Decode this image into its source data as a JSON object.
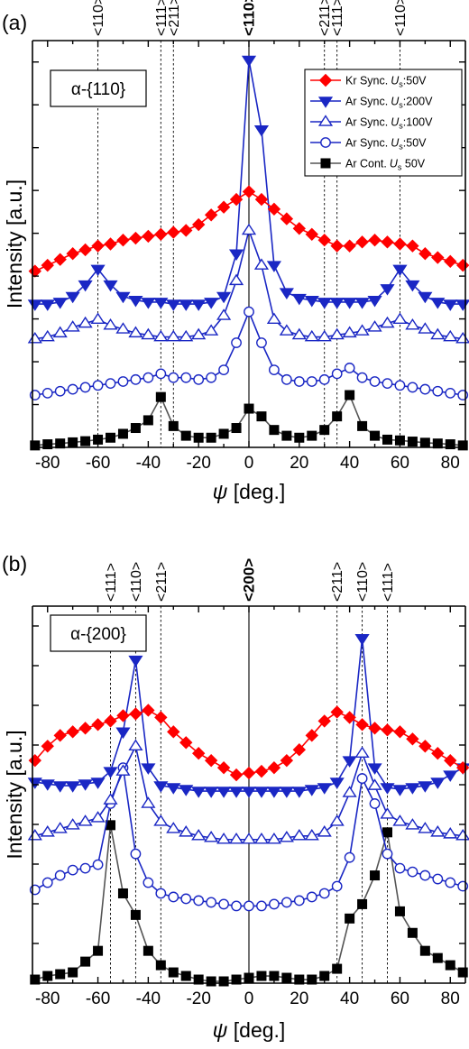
{
  "chart_data": [
    {
      "type": "line",
      "panel_label": "(a)",
      "annotation": "α-{110}",
      "xlabel_sym": "ψ",
      "xlabel_rest": " [deg.]",
      "ylabel": "Intensity [a.u.]",
      "xlim": [
        -86,
        86
      ],
      "ylim": [
        0,
        1.05
      ],
      "x_ticks": [
        -80,
        -60,
        -40,
        -20,
        0,
        20,
        40,
        60,
        80
      ],
      "y_tick_labels": "none",
      "legend_position": "top-right",
      "direction_guides": [
        {
          "x": -60,
          "label": "<110>",
          "style": "dotted",
          "bold": false
        },
        {
          "x": -35,
          "label": "<111>",
          "style": "dotted",
          "bold": false
        },
        {
          "x": -30,
          "label": "<211>",
          "style": "dotted",
          "bold": false
        },
        {
          "x": 0,
          "label": "<110>",
          "style": "solid",
          "bold": true
        },
        {
          "x": 30,
          "label": "<211>",
          "style": "dotted",
          "bold": false
        },
        {
          "x": 35,
          "label": "<111>",
          "style": "dotted",
          "bold": false
        },
        {
          "x": 60,
          "label": "<110>",
          "style": "dotted",
          "bold": false
        }
      ],
      "series": [
        {
          "name": "Kr Sync. U_s:50V",
          "label_pre": "Kr Sync.",
          "label_u": "U",
          "label_sub": "s",
          "label_post": ":50V",
          "color": "#ff0000",
          "marker": "diamond",
          "filled": true,
          "line_color": "#ff0000",
          "x": [
            -85,
            -80,
            -75,
            -70,
            -65,
            -60,
            -55,
            -50,
            -45,
            -40,
            -35,
            -30,
            -25,
            -20,
            -15,
            -10,
            -5,
            0,
            5,
            10,
            15,
            20,
            25,
            30,
            35,
            40,
            45,
            50,
            55,
            60,
            65,
            70,
            75,
            80,
            85
          ],
          "y": [
            0.455,
            0.47,
            0.485,
            0.5,
            0.51,
            0.52,
            0.525,
            0.535,
            0.54,
            0.545,
            0.55,
            0.555,
            0.56,
            0.575,
            0.6,
            0.62,
            0.64,
            0.66,
            0.64,
            0.615,
            0.59,
            0.565,
            0.55,
            0.535,
            0.52,
            0.52,
            0.53,
            0.535,
            0.53,
            0.525,
            0.52,
            0.5,
            0.49,
            0.48,
            0.47
          ]
        },
        {
          "name": "Ar Sync. U_s:200V",
          "label_pre": "Ar Sync.",
          "label_u": "U",
          "label_sub": "s",
          "label_post": ":200V",
          "color": "#1a27c4",
          "marker": "triangle-down",
          "filled": true,
          "line_color": "#1a27c4",
          "x": [
            -85,
            -80,
            -75,
            -70,
            -65,
            -60,
            -55,
            -50,
            -45,
            -40,
            -35,
            -30,
            -25,
            -20,
            -15,
            -10,
            -5,
            0,
            5,
            10,
            15,
            20,
            25,
            30,
            35,
            40,
            45,
            50,
            55,
            60,
            65,
            70,
            75,
            80,
            85
          ],
          "y": [
            0.37,
            0.37,
            0.375,
            0.39,
            0.42,
            0.46,
            0.42,
            0.39,
            0.38,
            0.375,
            0.375,
            0.37,
            0.37,
            0.37,
            0.375,
            0.39,
            0.5,
            1.0,
            0.82,
            0.47,
            0.4,
            0.385,
            0.38,
            0.375,
            0.375,
            0.375,
            0.375,
            0.38,
            0.41,
            0.46,
            0.42,
            0.39,
            0.375,
            0.37,
            0.37
          ]
        },
        {
          "name": "Ar Sync. U_s:100V",
          "label_pre": "Ar Sync.",
          "label_u": "U",
          "label_sub": "s",
          "label_post": ":100V",
          "color": "#1a27c4",
          "marker": "triangle-up",
          "filled": false,
          "line_color": "#1a27c4",
          "x": [
            -85,
            -80,
            -75,
            -70,
            -65,
            -60,
            -55,
            -50,
            -45,
            -40,
            -35,
            -30,
            -25,
            -20,
            -15,
            -10,
            -5,
            0,
            5,
            10,
            15,
            20,
            25,
            30,
            35,
            40,
            45,
            50,
            55,
            60,
            65,
            70,
            75,
            80,
            85
          ],
          "y": [
            0.28,
            0.285,
            0.295,
            0.31,
            0.32,
            0.33,
            0.315,
            0.305,
            0.295,
            0.29,
            0.285,
            0.285,
            0.285,
            0.29,
            0.3,
            0.34,
            0.43,
            0.56,
            0.47,
            0.33,
            0.3,
            0.29,
            0.285,
            0.285,
            0.29,
            0.295,
            0.3,
            0.31,
            0.32,
            0.33,
            0.315,
            0.305,
            0.29,
            0.285,
            0.28
          ]
        },
        {
          "name": "Ar Sync. U_s:50V",
          "label_pre": "Ar Sync.",
          "label_u": "U",
          "label_sub": "s",
          "label_post": ":50V",
          "color": "#1a27c4",
          "marker": "circle",
          "filled": false,
          "line_color": "#1a27c4",
          "x": [
            -85,
            -80,
            -75,
            -70,
            -65,
            -60,
            -55,
            -50,
            -45,
            -40,
            -35,
            -30,
            -25,
            -20,
            -15,
            -10,
            -5,
            0,
            5,
            10,
            15,
            20,
            25,
            30,
            35,
            40,
            45,
            50,
            55,
            60,
            65,
            70,
            75,
            80,
            85
          ],
          "y": [
            0.135,
            0.14,
            0.145,
            0.15,
            0.155,
            0.16,
            0.165,
            0.17,
            0.175,
            0.18,
            0.19,
            0.18,
            0.18,
            0.175,
            0.18,
            0.2,
            0.27,
            0.35,
            0.27,
            0.2,
            0.175,
            0.17,
            0.17,
            0.175,
            0.19,
            0.205,
            0.18,
            0.17,
            0.165,
            0.16,
            0.155,
            0.15,
            0.145,
            0.14,
            0.135
          ]
        },
        {
          "name": "Ar Cont. U_s 50V",
          "label_pre": "Ar Cont.",
          "label_u": "U",
          "label_sub": "s",
          "label_post": " 50V",
          "color": "#000000",
          "marker": "square",
          "filled": true,
          "line_color": "#555555",
          "x": [
            -85,
            -80,
            -75,
            -70,
            -65,
            -60,
            -55,
            -50,
            -45,
            -40,
            -35,
            -30,
            -25,
            -20,
            -15,
            -10,
            -5,
            0,
            5,
            10,
            15,
            20,
            25,
            30,
            35,
            40,
            45,
            50,
            55,
            60,
            65,
            70,
            75,
            80,
            85
          ],
          "y": [
            0.005,
            0.008,
            0.01,
            0.013,
            0.016,
            0.02,
            0.025,
            0.035,
            0.05,
            0.07,
            0.13,
            0.055,
            0.03,
            0.025,
            0.025,
            0.035,
            0.05,
            0.1,
            0.08,
            0.045,
            0.03,
            0.025,
            0.03,
            0.045,
            0.08,
            0.135,
            0.055,
            0.03,
            0.02,
            0.018,
            0.015,
            0.012,
            0.01,
            0.008,
            0.005
          ]
        }
      ]
    },
    {
      "type": "line",
      "panel_label": "(b)",
      "annotation": "α-{200}",
      "xlabel_sym": "ψ",
      "xlabel_rest": " [deg.]",
      "ylabel": "Intensity [a.u.]",
      "xlim": [
        -86,
        86
      ],
      "ylim": [
        0,
        1.05
      ],
      "x_ticks": [
        -80,
        -60,
        -40,
        -20,
        0,
        20,
        40,
        60,
        80
      ],
      "y_tick_labels": "none",
      "direction_guides": [
        {
          "x": -55,
          "label": "<111>",
          "style": "dotted",
          "bold": false
        },
        {
          "x": -45,
          "label": "<110>",
          "style": "dotted",
          "bold": false
        },
        {
          "x": -35,
          "label": "<211>",
          "style": "dotted",
          "bold": false
        },
        {
          "x": 0,
          "label": "<200>",
          "style": "solid",
          "bold": true
        },
        {
          "x": 35,
          "label": "<211>",
          "style": "dotted",
          "bold": false
        },
        {
          "x": 45,
          "label": "<110>",
          "style": "dotted",
          "bold": false
        },
        {
          "x": 55,
          "label": "<111>",
          "style": "dotted",
          "bold": false
        }
      ],
      "series": [
        {
          "name": "Kr Sync. U_s:50V",
          "color": "#ff0000",
          "marker": "diamond",
          "filled": true,
          "line_color": "#ff0000",
          "x": [
            -85,
            -80,
            -75,
            -70,
            -65,
            -60,
            -55,
            -50,
            -45,
            -40,
            -35,
            -30,
            -25,
            -20,
            -15,
            -10,
            -5,
            0,
            5,
            10,
            15,
            20,
            25,
            30,
            35,
            40,
            45,
            50,
            55,
            60,
            65,
            70,
            75,
            80,
            85
          ],
          "y": [
            0.62,
            0.66,
            0.69,
            0.7,
            0.71,
            0.72,
            0.73,
            0.745,
            0.75,
            0.76,
            0.74,
            0.7,
            0.67,
            0.64,
            0.62,
            0.6,
            0.58,
            0.585,
            0.59,
            0.6,
            0.62,
            0.65,
            0.69,
            0.73,
            0.755,
            0.74,
            0.72,
            0.71,
            0.705,
            0.7,
            0.68,
            0.66,
            0.64,
            0.62,
            0.6
          ]
        },
        {
          "name": "Ar Sync. U_s:200V",
          "color": "#1a27c4",
          "marker": "triangle-down",
          "filled": true,
          "line_color": "#1a27c4",
          "x": [
            -85,
            -80,
            -75,
            -70,
            -65,
            -60,
            -55,
            -50,
            -45,
            -40,
            -35,
            -30,
            -25,
            -20,
            -15,
            -10,
            -5,
            0,
            5,
            10,
            15,
            20,
            25,
            30,
            35,
            40,
            45,
            50,
            55,
            60,
            65,
            70,
            75,
            80,
            85
          ],
          "y": [
            0.56,
            0.555,
            0.55,
            0.55,
            0.555,
            0.56,
            0.59,
            0.7,
            0.9,
            0.6,
            0.55,
            0.545,
            0.54,
            0.535,
            0.535,
            0.535,
            0.535,
            0.535,
            0.535,
            0.535,
            0.535,
            0.535,
            0.54,
            0.545,
            0.56,
            0.62,
            0.96,
            0.6,
            0.545,
            0.54,
            0.545,
            0.55,
            0.56,
            0.58,
            0.6
          ]
        },
        {
          "name": "Ar Sync. U_s:100V",
          "color": "#1a27c4",
          "marker": "triangle-up",
          "filled": false,
          "line_color": "#1a27c4",
          "x": [
            -85,
            -80,
            -75,
            -70,
            -65,
            -60,
            -55,
            -50,
            -45,
            -40,
            -35,
            -30,
            -25,
            -20,
            -15,
            -10,
            -5,
            0,
            5,
            10,
            15,
            20,
            25,
            30,
            35,
            40,
            45,
            50,
            55,
            60,
            65,
            70,
            75,
            80,
            85
          ],
          "y": [
            0.41,
            0.42,
            0.43,
            0.44,
            0.45,
            0.46,
            0.51,
            0.59,
            0.66,
            0.5,
            0.45,
            0.43,
            0.42,
            0.41,
            0.405,
            0.4,
            0.4,
            0.4,
            0.4,
            0.4,
            0.405,
            0.41,
            0.41,
            0.42,
            0.45,
            0.53,
            0.64,
            0.55,
            0.47,
            0.45,
            0.44,
            0.43,
            0.42,
            0.415,
            0.41
          ]
        },
        {
          "name": "Ar Sync. U_s:50V",
          "color": "#1a27c4",
          "marker": "circle",
          "filled": false,
          "line_color": "#1a27c4",
          "x": [
            -85,
            -80,
            -75,
            -70,
            -65,
            -60,
            -55,
            -50,
            -45,
            -40,
            -35,
            -30,
            -25,
            -20,
            -15,
            -10,
            -5,
            0,
            5,
            10,
            15,
            20,
            25,
            30,
            35,
            40,
            45,
            50,
            55,
            60,
            65,
            70,
            75,
            80,
            85
          ],
          "y": [
            0.26,
            0.28,
            0.3,
            0.315,
            0.32,
            0.33,
            0.5,
            0.6,
            0.36,
            0.28,
            0.25,
            0.24,
            0.235,
            0.23,
            0.225,
            0.22,
            0.215,
            0.215,
            0.215,
            0.22,
            0.225,
            0.23,
            0.24,
            0.25,
            0.27,
            0.35,
            0.57,
            0.5,
            0.36,
            0.32,
            0.31,
            0.3,
            0.29,
            0.28,
            0.27
          ]
        },
        {
          "name": "Ar Cont. U_s 50V",
          "color": "#000000",
          "marker": "square",
          "filled": true,
          "line_color": "#555555",
          "x": [
            -85,
            -80,
            -75,
            -70,
            -65,
            -60,
            -55,
            -50,
            -45,
            -40,
            -35,
            -30,
            -25,
            -20,
            -15,
            -10,
            -5,
            0,
            5,
            10,
            15,
            20,
            25,
            30,
            35,
            40,
            45,
            50,
            55,
            60,
            65,
            70,
            75,
            80,
            85
          ],
          "y": [
            0.01,
            0.02,
            0.025,
            0.03,
            0.06,
            0.09,
            0.44,
            0.25,
            0.19,
            0.09,
            0.05,
            0.03,
            0.02,
            0.01,
            0.005,
            0.005,
            0.01,
            0.015,
            0.02,
            0.02,
            0.015,
            0.01,
            0.01,
            0.02,
            0.04,
            0.18,
            0.22,
            0.3,
            0.42,
            0.2,
            0.14,
            0.09,
            0.07,
            0.05,
            0.03
          ]
        }
      ]
    }
  ]
}
